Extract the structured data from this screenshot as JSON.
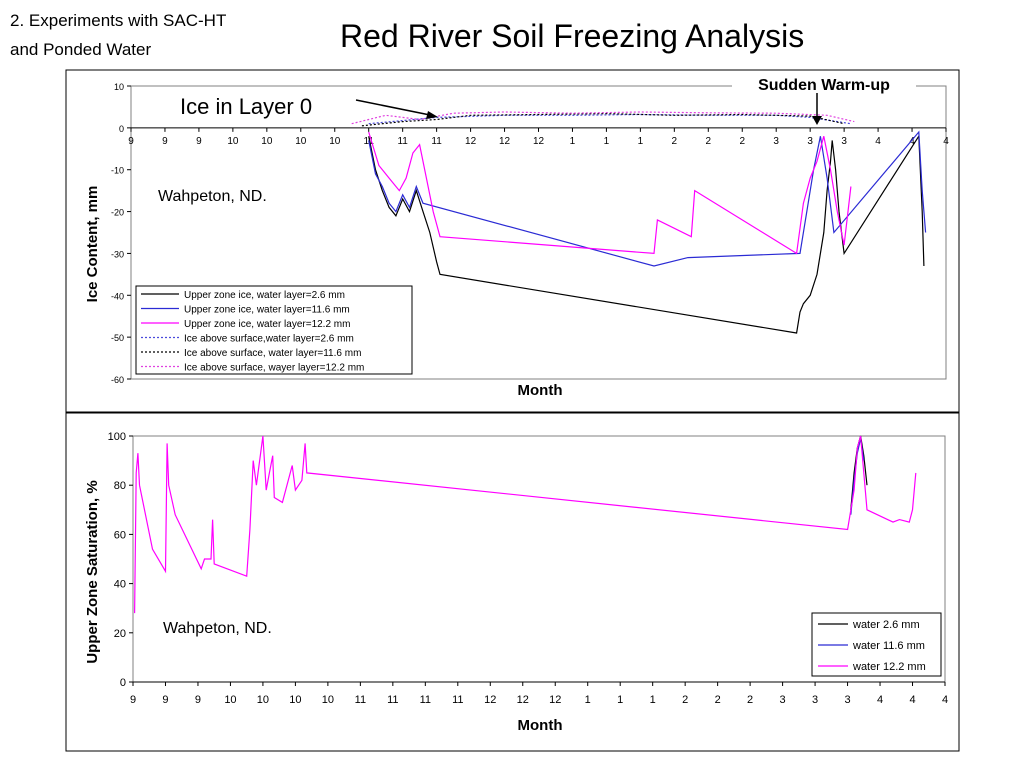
{
  "header": {
    "section_line1": "2. Experiments with SAC-HT",
    "section_line2": "and Ponded Water",
    "title": "Red River Soil Freezing Analysis"
  },
  "colors": {
    "black_series": "#000000",
    "blue_series": "#2b2bd4",
    "magenta_series": "#ff00ff",
    "blue_dotted": "#4a4adc",
    "magenta_dotted": "#e040e0"
  },
  "chart_data": [
    {
      "type": "line",
      "xlabel": "Month",
      "ylabel": "Ice Content, mm",
      "ylim": [
        -60,
        10
      ],
      "yticks": [
        10,
        0,
        -10,
        -20,
        -30,
        -40,
        -50,
        -60
      ],
      "x_tick_labels": [
        "9",
        "9",
        "9",
        "10",
        "10",
        "10",
        "10",
        "11",
        "11",
        "11",
        "12",
        "12",
        "12",
        "1",
        "1",
        "1",
        "2",
        "2",
        "2",
        "3",
        "3",
        "3",
        "4",
        "4",
        "4"
      ],
      "annotations": {
        "ice_layer": "Ice in Layer 0",
        "warmup": "Sudden Warm-up",
        "location": "Wahpeton, ND."
      },
      "legend_position": "bottom-left",
      "series": [
        {
          "name": "Upper zone ice, water layer=2.6 mm",
          "style": "solid",
          "color": "#000000",
          "points": [
            [
              7.0,
              -2
            ],
            [
              7.2,
              -10
            ],
            [
              7.4,
              -15
            ],
            [
              7.6,
              -19
            ],
            [
              7.8,
              -21
            ],
            [
              8.0,
              -17
            ],
            [
              8.2,
              -20
            ],
            [
              8.4,
              -15
            ],
            [
              8.6,
              -20
            ],
            [
              8.8,
              -25
            ],
            [
              9.0,
              -32
            ],
            [
              9.1,
              -35
            ],
            [
              19.6,
              -49
            ],
            [
              19.7,
              -44
            ],
            [
              19.8,
              -42
            ],
            [
              20.0,
              -40
            ],
            [
              20.2,
              -35
            ],
            [
              20.4,
              -25
            ],
            [
              20.5,
              -15
            ],
            [
              20.6,
              -8
            ],
            [
              20.65,
              -3
            ],
            [
              20.75,
              -10
            ],
            [
              20.85,
              -20
            ],
            [
              21.0,
              -30
            ],
            [
              23.2,
              -2
            ],
            [
              23.3,
              -20
            ],
            [
              23.35,
              -33
            ]
          ]
        },
        {
          "name": "Upper zone ice, water layer=11.6 mm",
          "style": "solid",
          "color": "#2b2bd4",
          "points": [
            [
              7.0,
              -3
            ],
            [
              7.2,
              -11
            ],
            [
              7.4,
              -14
            ],
            [
              7.6,
              -18
            ],
            [
              7.8,
              -20
            ],
            [
              8.0,
              -16
            ],
            [
              8.2,
              -19
            ],
            [
              8.4,
              -14
            ],
            [
              8.6,
              -18
            ],
            [
              15.4,
              -33
            ],
            [
              16.4,
              -31
            ],
            [
              19.7,
              -30
            ],
            [
              19.9,
              -20
            ],
            [
              20.1,
              -10
            ],
            [
              20.3,
              -2
            ],
            [
              20.5,
              -12
            ],
            [
              20.7,
              -25
            ],
            [
              23.2,
              -1
            ],
            [
              23.3,
              -15
            ],
            [
              23.4,
              -25
            ]
          ]
        },
        {
          "name": "Upper zone ice, water layer=12.2 mm",
          "style": "solid",
          "color": "#ff00ff",
          "points": [
            [
              7.0,
              -1
            ],
            [
              7.3,
              -9
            ],
            [
              7.6,
              -12
            ],
            [
              7.9,
              -15
            ],
            [
              8.1,
              -12
            ],
            [
              8.3,
              -6
            ],
            [
              8.5,
              -4
            ],
            [
              8.7,
              -12
            ],
            [
              8.9,
              -20
            ],
            [
              9.1,
              -26
            ],
            [
              15.4,
              -30
            ],
            [
              15.5,
              -22
            ],
            [
              16.5,
              -26
            ],
            [
              16.6,
              -15
            ],
            [
              19.6,
              -30
            ],
            [
              19.8,
              -18
            ],
            [
              20.0,
              -12
            ],
            [
              20.2,
              -8
            ],
            [
              20.4,
              -2
            ],
            [
              20.6,
              -10
            ],
            [
              20.8,
              -20
            ],
            [
              21.0,
              -28
            ],
            [
              21.2,
              -14
            ]
          ]
        },
        {
          "name": "Ice above surface,water layer=2.6 mm",
          "style": "dotted",
          "color": "#4a4adc",
          "points": [
            [
              7.0,
              1
            ],
            [
              9.0,
              2.5
            ],
            [
              11.0,
              3
            ],
            [
              13.0,
              3
            ],
            [
              15.0,
              3.2
            ],
            [
              17.0,
              3
            ],
            [
              19.0,
              3
            ],
            [
              20.0,
              2.5
            ],
            [
              21.2,
              1
            ]
          ]
        },
        {
          "name": "Ice above surface, water layer=11.6 mm",
          "style": "dotted",
          "color": "#000000",
          "points": [
            [
              6.8,
              0.5
            ],
            [
              8.0,
              1.5
            ],
            [
              9.0,
              2
            ],
            [
              10.0,
              3
            ],
            [
              12.0,
              3.2
            ],
            [
              14.0,
              3.4
            ],
            [
              16.0,
              3
            ],
            [
              18.0,
              3.2
            ],
            [
              20.0,
              2.8
            ],
            [
              21.0,
              1
            ]
          ]
        },
        {
          "name": "Ice above surface, wayer layer=12.2 mm",
          "style": "dotted",
          "color": "#e040e0",
          "points": [
            [
              6.5,
              1
            ],
            [
              7.5,
              3
            ],
            [
              8.5,
              2
            ],
            [
              9.5,
              3.5
            ],
            [
              11.0,
              3.8
            ],
            [
              13.0,
              3.5
            ],
            [
              15.0,
              3.8
            ],
            [
              17.0,
              3.6
            ],
            [
              19.0,
              3.5
            ],
            [
              20.5,
              3
            ],
            [
              21.3,
              1.5
            ]
          ]
        }
      ]
    },
    {
      "type": "line",
      "xlabel": "Month",
      "ylabel": "Upper Zone Saturation, %",
      "ylim": [
        0,
        100
      ],
      "yticks": [
        100,
        80,
        60,
        40,
        20,
        0
      ],
      "x_tick_labels": [
        "9",
        "9",
        "9",
        "10",
        "10",
        "10",
        "10",
        "11",
        "11",
        "11",
        "11",
        "12",
        "12",
        "12",
        "1",
        "1",
        "1",
        "2",
        "2",
        "2",
        "3",
        "3",
        "3",
        "4",
        "4",
        "4"
      ],
      "annotations": {
        "location": "Wahpeton, ND."
      },
      "legend_position": "bottom-right",
      "series": [
        {
          "name": "water 2.6 mm",
          "color": "#000000",
          "points": [
            [
              22.1,
              70
            ],
            [
              22.2,
              85
            ],
            [
              22.3,
              95
            ],
            [
              22.4,
              100
            ],
            [
              22.5,
              92
            ],
            [
              22.6,
              80
            ]
          ]
        },
        {
          "name": "water 11.6 mm",
          "color": "#2b2bd4",
          "points": [
            [
              22.1,
              68
            ],
            [
              22.2,
              82
            ],
            [
              22.3,
              93
            ],
            [
              22.4,
              99
            ],
            [
              22.5,
              90
            ]
          ]
        },
        {
          "name": "water 12.2 mm",
          "color": "#ff00ff",
          "points": [
            [
              0.05,
              28
            ],
            [
              0.1,
              85
            ],
            [
              0.15,
              93
            ],
            [
              0.2,
              80
            ],
            [
              0.6,
              54
            ],
            [
              1.0,
              45
            ],
            [
              1.05,
              97
            ],
            [
              1.1,
              80
            ],
            [
              1.3,
              68
            ],
            [
              2.1,
              46
            ],
            [
              2.2,
              50
            ],
            [
              2.4,
              50
            ],
            [
              2.45,
              66
            ],
            [
              2.5,
              48
            ],
            [
              3.5,
              43
            ],
            [
              3.6,
              62
            ],
            [
              3.7,
              90
            ],
            [
              3.8,
              80
            ],
            [
              4.0,
              100
            ],
            [
              4.1,
              78
            ],
            [
              4.2,
              85
            ],
            [
              4.3,
              92
            ],
            [
              4.35,
              75
            ],
            [
              4.6,
              73
            ],
            [
              4.9,
              88
            ],
            [
              5.0,
              78
            ],
            [
              5.2,
              82
            ],
            [
              5.3,
              97
            ],
            [
              5.35,
              85
            ],
            [
              22.0,
              62
            ],
            [
              22.2,
              78
            ],
            [
              22.3,
              95
            ],
            [
              22.4,
              100
            ],
            [
              22.5,
              85
            ],
            [
              22.6,
              70
            ],
            [
              23.4,
              65
            ],
            [
              23.6,
              66
            ],
            [
              23.9,
              65
            ],
            [
              24.0,
              70
            ],
            [
              24.1,
              85
            ]
          ]
        }
      ]
    }
  ]
}
